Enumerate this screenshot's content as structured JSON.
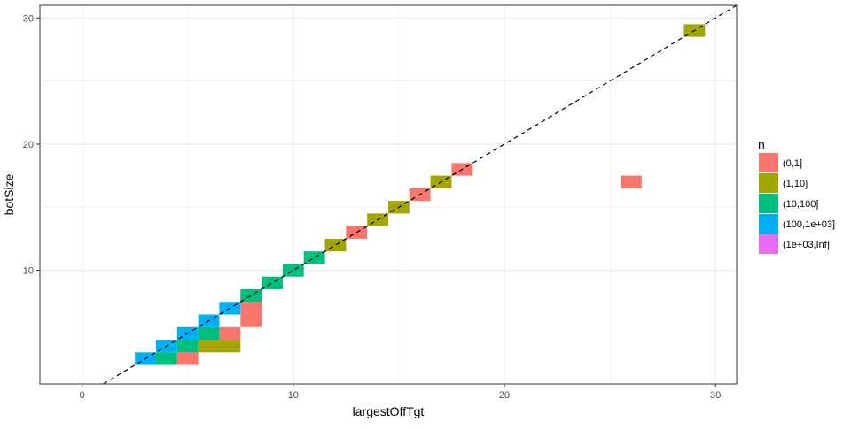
{
  "colors": {
    "(0,1]": "#F8766D",
    "(1,10]": "#A3A500",
    "(10,100]": "#00BF7D",
    "(100,1e+03]": "#00B0F6",
    "(1e+03,Inf]": "#E76BF3",
    "grid": "#ebebeb",
    "panel_border": "#333333"
  },
  "chart_data": {
    "type": "heatmap",
    "title": "",
    "xlabel": "largestOffTgt",
    "ylabel": "botSize",
    "xlim": [
      -2,
      31
    ],
    "ylim": [
      1,
      31
    ],
    "x_ticks": [
      0,
      10,
      20,
      30
    ],
    "y_ticks": [
      10,
      20,
      30
    ],
    "x_tick_labels": [
      "0",
      "10",
      "20",
      "30"
    ],
    "y_tick_labels": [
      "10",
      "20",
      "30"
    ],
    "grid": true,
    "legend_position": "right",
    "legend_title": "n",
    "legend_labels": [
      "(0,1]",
      "(1,10]",
      "(10,100]",
      "(100,1e+03]",
      "(1e+03,Inf]"
    ],
    "reference_line": {
      "type": "dashed",
      "slope": 1,
      "intercept": 0
    },
    "tiles": [
      {
        "x": 3,
        "y": 3,
        "n": "(100,1e+03]"
      },
      {
        "x": 4,
        "y": 3,
        "n": "(10,100]"
      },
      {
        "x": 5,
        "y": 3,
        "n": "(0,1]"
      },
      {
        "x": 4,
        "y": 4,
        "n": "(100,1e+03]"
      },
      {
        "x": 5,
        "y": 4,
        "n": "(10,100]"
      },
      {
        "x": 6,
        "y": 4,
        "n": "(1,10]"
      },
      {
        "x": 7,
        "y": 4,
        "n": "(1,10]"
      },
      {
        "x": 5,
        "y": 5,
        "n": "(100,1e+03]"
      },
      {
        "x": 6,
        "y": 5,
        "n": "(10,100]"
      },
      {
        "x": 7,
        "y": 5,
        "n": "(0,1]"
      },
      {
        "x": 6,
        "y": 6,
        "n": "(100,1e+03]"
      },
      {
        "x": 8,
        "y": 6,
        "n": "(0,1]"
      },
      {
        "x": 7,
        "y": 7,
        "n": "(100,1e+03]"
      },
      {
        "x": 8,
        "y": 7,
        "n": "(0,1]"
      },
      {
        "x": 8,
        "y": 8,
        "n": "(10,100]"
      },
      {
        "x": 9,
        "y": 9,
        "n": "(10,100]"
      },
      {
        "x": 10,
        "y": 10,
        "n": "(10,100]"
      },
      {
        "x": 11,
        "y": 11,
        "n": "(10,100]"
      },
      {
        "x": 12,
        "y": 12,
        "n": "(1,10]"
      },
      {
        "x": 13,
        "y": 13,
        "n": "(0,1]"
      },
      {
        "x": 14,
        "y": 14,
        "n": "(1,10]"
      },
      {
        "x": 15,
        "y": 15,
        "n": "(1,10]"
      },
      {
        "x": 16,
        "y": 16,
        "n": "(0,1]"
      },
      {
        "x": 17,
        "y": 17,
        "n": "(1,10]"
      },
      {
        "x": 18,
        "y": 18,
        "n": "(0,1]"
      },
      {
        "x": 26,
        "y": 17,
        "n": "(0,1]"
      },
      {
        "x": 29,
        "y": 29,
        "n": "(1,10]"
      }
    ]
  }
}
